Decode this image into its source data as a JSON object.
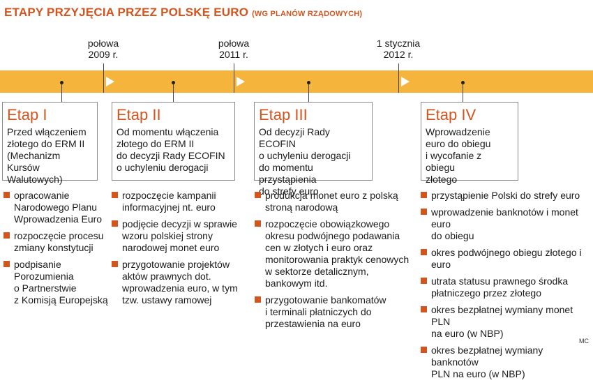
{
  "title": {
    "main": "ETAPY PRZYJĘCIA PRZEZ POLSKĘ EURO",
    "sub": "(WG PLANÓW RZĄDOWYCH)"
  },
  "milestones": [
    {
      "line1": "połowa",
      "line2": "2009 r."
    },
    {
      "line1": "połowa",
      "line2": "2011 r."
    },
    {
      "line1": "1 stycznia",
      "line2": "2012 r."
    }
  ],
  "stages": [
    {
      "name": "Etap I",
      "description": [
        "Przed włączeniem",
        "złotego do ERM II",
        "(Mechanizm Kursów",
        "Walutowych)"
      ],
      "items": [
        [
          "opracowanie",
          "Narodowego Planu",
          "Wprowadzenia Euro"
        ],
        [
          "rozpoczęcie procesu",
          "zmiany konstytucji"
        ],
        [
          "podpisanie",
          "Porozumienia",
          "o Partnerstwie",
          "z Komisją Europejską"
        ]
      ]
    },
    {
      "name": "Etap II",
      "description": [
        "Od momentu włączenia",
        "złotego do ERM II",
        "do decyzji Rady ECOFIN",
        "o uchyleniu derogacji"
      ],
      "items": [
        [
          "rozpoczęcie kampanii",
          "informacyjnej nt. euro"
        ],
        [
          "podjęcie decyzji w sprawie",
          "wzoru polskiej strony",
          "narodowej monet euro"
        ],
        [
          "przygotowanie projektów",
          "aktów prawnych dot.",
          "wprowadzenia euro, w tym",
          "tzw. ustawy ramowej"
        ]
      ]
    },
    {
      "name": "Etap III",
      "description": [
        "Od decyzji Rady ECOFIN",
        "o uchyleniu derogacji",
        "do momentu przystąpienia",
        "do strefy euro"
      ],
      "items": [
        [
          "produkcja monet euro z polską",
          "stroną narodową"
        ],
        [
          "rozpoczęcie obowiązkowego",
          "okresu podwójnego podawania",
          "cen w złotych i euro oraz",
          "monitorowania praktyk cenowych",
          "w sektorze detalicznym,",
          "bankowym itd."
        ],
        [
          "przygotowanie bankomatów",
          "i terminali płatniczych do",
          "przestawienia na euro"
        ]
      ]
    },
    {
      "name": "Etap IV",
      "description": [
        "Wprowadzenie",
        "euro do obiegu",
        "i wycofanie z obiegu",
        "złotego"
      ],
      "items": [
        [
          "przystąpienie Polski do strefy euro"
        ],
        [
          "wprowadzenie banknotów i monet euro",
          "do obiegu"
        ],
        [
          "okres podwójnego obiegu złotego i euro"
        ],
        [
          "utrata statusu prawnego środka",
          "płatniczego przez złotego"
        ],
        [
          "okres bezpłatnej wymiany monet PLN",
          "na euro (w NBP)"
        ],
        [
          "okres bezpłatnej wymiany banknotów",
          "PLN na euro (w NBP)"
        ]
      ]
    }
  ],
  "credit": "MC",
  "colors": {
    "accent": "#d4541e",
    "band": "#f5b53c"
  }
}
